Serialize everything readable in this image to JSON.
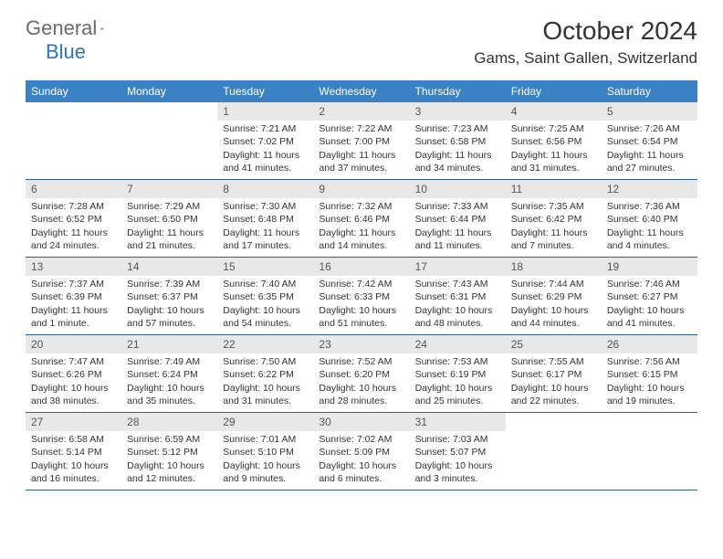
{
  "brand": {
    "part1": "General",
    "part2": "Blue",
    "icon_color": "#2976ba"
  },
  "title": "October 2024",
  "location": "Gams, Saint Gallen, Switzerland",
  "colors": {
    "header_bg": "#3b82c4",
    "header_text": "#ffffff",
    "daynum_bg": "#e8e8e8",
    "week_border": "#2c5f8d",
    "text": "#333333"
  },
  "dow": [
    "Sunday",
    "Monday",
    "Tuesday",
    "Wednesday",
    "Thursday",
    "Friday",
    "Saturday"
  ],
  "weeks": [
    [
      null,
      null,
      {
        "n": "1",
        "sr": "Sunrise: 7:21 AM",
        "ss": "Sunset: 7:02 PM",
        "dl": "Daylight: 11 hours and 41 minutes."
      },
      {
        "n": "2",
        "sr": "Sunrise: 7:22 AM",
        "ss": "Sunset: 7:00 PM",
        "dl": "Daylight: 11 hours and 37 minutes."
      },
      {
        "n": "3",
        "sr": "Sunrise: 7:23 AM",
        "ss": "Sunset: 6:58 PM",
        "dl": "Daylight: 11 hours and 34 minutes."
      },
      {
        "n": "4",
        "sr": "Sunrise: 7:25 AM",
        "ss": "Sunset: 6:56 PM",
        "dl": "Daylight: 11 hours and 31 minutes."
      },
      {
        "n": "5",
        "sr": "Sunrise: 7:26 AM",
        "ss": "Sunset: 6:54 PM",
        "dl": "Daylight: 11 hours and 27 minutes."
      }
    ],
    [
      {
        "n": "6",
        "sr": "Sunrise: 7:28 AM",
        "ss": "Sunset: 6:52 PM",
        "dl": "Daylight: 11 hours and 24 minutes."
      },
      {
        "n": "7",
        "sr": "Sunrise: 7:29 AM",
        "ss": "Sunset: 6:50 PM",
        "dl": "Daylight: 11 hours and 21 minutes."
      },
      {
        "n": "8",
        "sr": "Sunrise: 7:30 AM",
        "ss": "Sunset: 6:48 PM",
        "dl": "Daylight: 11 hours and 17 minutes."
      },
      {
        "n": "9",
        "sr": "Sunrise: 7:32 AM",
        "ss": "Sunset: 6:46 PM",
        "dl": "Daylight: 11 hours and 14 minutes."
      },
      {
        "n": "10",
        "sr": "Sunrise: 7:33 AM",
        "ss": "Sunset: 6:44 PM",
        "dl": "Daylight: 11 hours and 11 minutes."
      },
      {
        "n": "11",
        "sr": "Sunrise: 7:35 AM",
        "ss": "Sunset: 6:42 PM",
        "dl": "Daylight: 11 hours and 7 minutes."
      },
      {
        "n": "12",
        "sr": "Sunrise: 7:36 AM",
        "ss": "Sunset: 6:40 PM",
        "dl": "Daylight: 11 hours and 4 minutes."
      }
    ],
    [
      {
        "n": "13",
        "sr": "Sunrise: 7:37 AM",
        "ss": "Sunset: 6:39 PM",
        "dl": "Daylight: 11 hours and 1 minute."
      },
      {
        "n": "14",
        "sr": "Sunrise: 7:39 AM",
        "ss": "Sunset: 6:37 PM",
        "dl": "Daylight: 10 hours and 57 minutes."
      },
      {
        "n": "15",
        "sr": "Sunrise: 7:40 AM",
        "ss": "Sunset: 6:35 PM",
        "dl": "Daylight: 10 hours and 54 minutes."
      },
      {
        "n": "16",
        "sr": "Sunrise: 7:42 AM",
        "ss": "Sunset: 6:33 PM",
        "dl": "Daylight: 10 hours and 51 minutes."
      },
      {
        "n": "17",
        "sr": "Sunrise: 7:43 AM",
        "ss": "Sunset: 6:31 PM",
        "dl": "Daylight: 10 hours and 48 minutes."
      },
      {
        "n": "18",
        "sr": "Sunrise: 7:44 AM",
        "ss": "Sunset: 6:29 PM",
        "dl": "Daylight: 10 hours and 44 minutes."
      },
      {
        "n": "19",
        "sr": "Sunrise: 7:46 AM",
        "ss": "Sunset: 6:27 PM",
        "dl": "Daylight: 10 hours and 41 minutes."
      }
    ],
    [
      {
        "n": "20",
        "sr": "Sunrise: 7:47 AM",
        "ss": "Sunset: 6:26 PM",
        "dl": "Daylight: 10 hours and 38 minutes."
      },
      {
        "n": "21",
        "sr": "Sunrise: 7:49 AM",
        "ss": "Sunset: 6:24 PM",
        "dl": "Daylight: 10 hours and 35 minutes."
      },
      {
        "n": "22",
        "sr": "Sunrise: 7:50 AM",
        "ss": "Sunset: 6:22 PM",
        "dl": "Daylight: 10 hours and 31 minutes."
      },
      {
        "n": "23",
        "sr": "Sunrise: 7:52 AM",
        "ss": "Sunset: 6:20 PM",
        "dl": "Daylight: 10 hours and 28 minutes."
      },
      {
        "n": "24",
        "sr": "Sunrise: 7:53 AM",
        "ss": "Sunset: 6:19 PM",
        "dl": "Daylight: 10 hours and 25 minutes."
      },
      {
        "n": "25",
        "sr": "Sunrise: 7:55 AM",
        "ss": "Sunset: 6:17 PM",
        "dl": "Daylight: 10 hours and 22 minutes."
      },
      {
        "n": "26",
        "sr": "Sunrise: 7:56 AM",
        "ss": "Sunset: 6:15 PM",
        "dl": "Daylight: 10 hours and 19 minutes."
      }
    ],
    [
      {
        "n": "27",
        "sr": "Sunrise: 6:58 AM",
        "ss": "Sunset: 5:14 PM",
        "dl": "Daylight: 10 hours and 16 minutes."
      },
      {
        "n": "28",
        "sr": "Sunrise: 6:59 AM",
        "ss": "Sunset: 5:12 PM",
        "dl": "Daylight: 10 hours and 12 minutes."
      },
      {
        "n": "29",
        "sr": "Sunrise: 7:01 AM",
        "ss": "Sunset: 5:10 PM",
        "dl": "Daylight: 10 hours and 9 minutes."
      },
      {
        "n": "30",
        "sr": "Sunrise: 7:02 AM",
        "ss": "Sunset: 5:09 PM",
        "dl": "Daylight: 10 hours and 6 minutes."
      },
      {
        "n": "31",
        "sr": "Sunrise: 7:03 AM",
        "ss": "Sunset: 5:07 PM",
        "dl": "Daylight: 10 hours and 3 minutes."
      },
      null,
      null
    ]
  ]
}
